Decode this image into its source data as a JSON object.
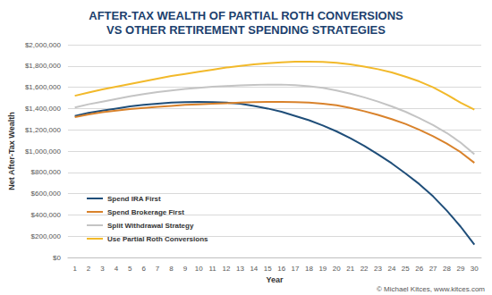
{
  "chart_data": {
    "type": "line",
    "title": "AFTER-TAX WEALTH OF PARTIAL ROTH CONVERSIONS\nVS OTHER RETIREMENT SPENDING STRATEGIES",
    "x_label": "Year",
    "y_label": "Net After-Tax Wealth",
    "annotations": [
      "© Michael Kitces, www.kitces.com"
    ],
    "categories": [
      "1",
      "2",
      "3",
      "4",
      "5",
      "6",
      "7",
      "8",
      "9",
      "10",
      "11",
      "12",
      "13",
      "14",
      "15",
      "16",
      "17",
      "18",
      "19",
      "20",
      "21",
      "22",
      "23",
      "24",
      "25",
      "26",
      "27",
      "28",
      "29",
      "30"
    ],
    "series": [
      {
        "name": "Spend IRA First",
        "color": "#1f4e79",
        "values": [
          1330000,
          1360000,
          1380000,
          1400000,
          1420000,
          1435000,
          1445000,
          1455000,
          1460000,
          1462000,
          1460000,
          1455000,
          1445000,
          1425000,
          1400000,
          1370000,
          1330000,
          1290000,
          1240000,
          1185000,
          1120000,
          1050000,
          970000,
          885000,
          790000,
          690000,
          575000,
          440000,
          290000,
          120000
        ]
      },
      {
        "name": "Spend Brokerage First",
        "color": "#d9822b",
        "values": [
          1320000,
          1345000,
          1365000,
          1380000,
          1395000,
          1405000,
          1415000,
          1425000,
          1435000,
          1440000,
          1445000,
          1450000,
          1455000,
          1460000,
          1462000,
          1462000,
          1460000,
          1455000,
          1445000,
          1430000,
          1405000,
          1375000,
          1340000,
          1300000,
          1255000,
          1200000,
          1140000,
          1070000,
          990000,
          890000
        ]
      },
      {
        "name": "Split Withdrawal Strategy",
        "color": "#c4c4c4",
        "values": [
          1410000,
          1440000,
          1465000,
          1490000,
          1515000,
          1535000,
          1555000,
          1570000,
          1585000,
          1595000,
          1605000,
          1612000,
          1618000,
          1622000,
          1625000,
          1625000,
          1620000,
          1610000,
          1595000,
          1570000,
          1540000,
          1505000,
          1465000,
          1420000,
          1370000,
          1310000,
          1245000,
          1170000,
          1080000,
          970000
        ]
      },
      {
        "name": "Use Partial Roth Conversions",
        "color": "#f2b92a",
        "values": [
          1520000,
          1550000,
          1580000,
          1605000,
          1630000,
          1655000,
          1680000,
          1705000,
          1725000,
          1745000,
          1765000,
          1785000,
          1800000,
          1815000,
          1825000,
          1835000,
          1840000,
          1840000,
          1838000,
          1830000,
          1815000,
          1795000,
          1770000,
          1740000,
          1700000,
          1655000,
          1600000,
          1530000,
          1455000,
          1390000
        ]
      }
    ],
    "ylim": [
      0,
      2000000
    ],
    "yticks": [
      {
        "value": 0,
        "label": "$0"
      },
      {
        "value": 200000,
        "label": "$200,000"
      },
      {
        "value": 400000,
        "label": "$400,000"
      },
      {
        "value": 600000,
        "label": "$600,000"
      },
      {
        "value": 800000,
        "label": "$800,000"
      },
      {
        "value": 1000000,
        "label": "$1,000,000"
      },
      {
        "value": 1200000,
        "label": "$1,200,000"
      },
      {
        "value": 1400000,
        "label": "$1,400,000"
      },
      {
        "value": 1600000,
        "label": "$1,600,000"
      },
      {
        "value": 1800000,
        "label": "$1,800,000"
      },
      {
        "value": 2000000,
        "label": "$2,000,000"
      }
    ],
    "grid": true,
    "legend": "lower left"
  }
}
